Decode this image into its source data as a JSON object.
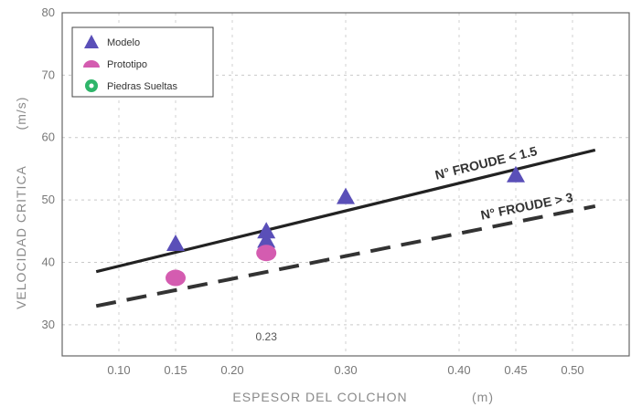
{
  "chart_data": {
    "type": "scatter",
    "xlabel": "ESPESOR DEL COLCHON",
    "xunit": "(m)",
    "ylabel": "VELOCIDAD CRITICA",
    "yunit": "(m/s)",
    "xlim": [
      0.05,
      0.55
    ],
    "ylim": [
      25,
      80
    ],
    "x_ticks": [
      "0.10",
      "0.15",
      "0.20",
      "0.30",
      "0.40",
      "0.45",
      "0.50"
    ],
    "x_tick_values": [
      0.1,
      0.15,
      0.2,
      0.3,
      0.4,
      0.45,
      0.5
    ],
    "y_ticks": [
      "30",
      "40",
      "50",
      "60",
      "70",
      "80"
    ],
    "y_tick_values": [
      30,
      40,
      50,
      60,
      70,
      80
    ],
    "grid": true,
    "legend_position": "top-left",
    "series": [
      {
        "name": "Modelo",
        "marker": "triangle",
        "color": "#5a4fb8",
        "points": [
          [
            0.15,
            43.0
          ],
          [
            0.23,
            45.0
          ],
          [
            0.23,
            43.5
          ],
          [
            0.3,
            50.5
          ],
          [
            0.45,
            54.0
          ]
        ]
      },
      {
        "name": "Prototipo",
        "marker": "semicircle",
        "color": "#d45cb0",
        "points": [
          [
            0.15,
            37.5
          ],
          [
            0.23,
            41.5
          ]
        ]
      },
      {
        "name": "Piedras Sueltas",
        "marker": "circle",
        "color": "#2fb56a",
        "points": []
      }
    ],
    "lines": [
      {
        "label": "N° FROUDE < 1.5",
        "style": "solid",
        "color": "#222222",
        "x": [
          0.08,
          0.52
        ],
        "y": [
          38.5,
          58.0
        ]
      },
      {
        "label": "N° FROUDE > 3",
        "style": "dashed",
        "color": "#333333",
        "x": [
          0.08,
          0.52
        ],
        "y": [
          33.0,
          49.0
        ]
      }
    ],
    "annotations": [
      {
        "text": "0.23",
        "x": 0.23,
        "y": 29.5
      }
    ]
  }
}
